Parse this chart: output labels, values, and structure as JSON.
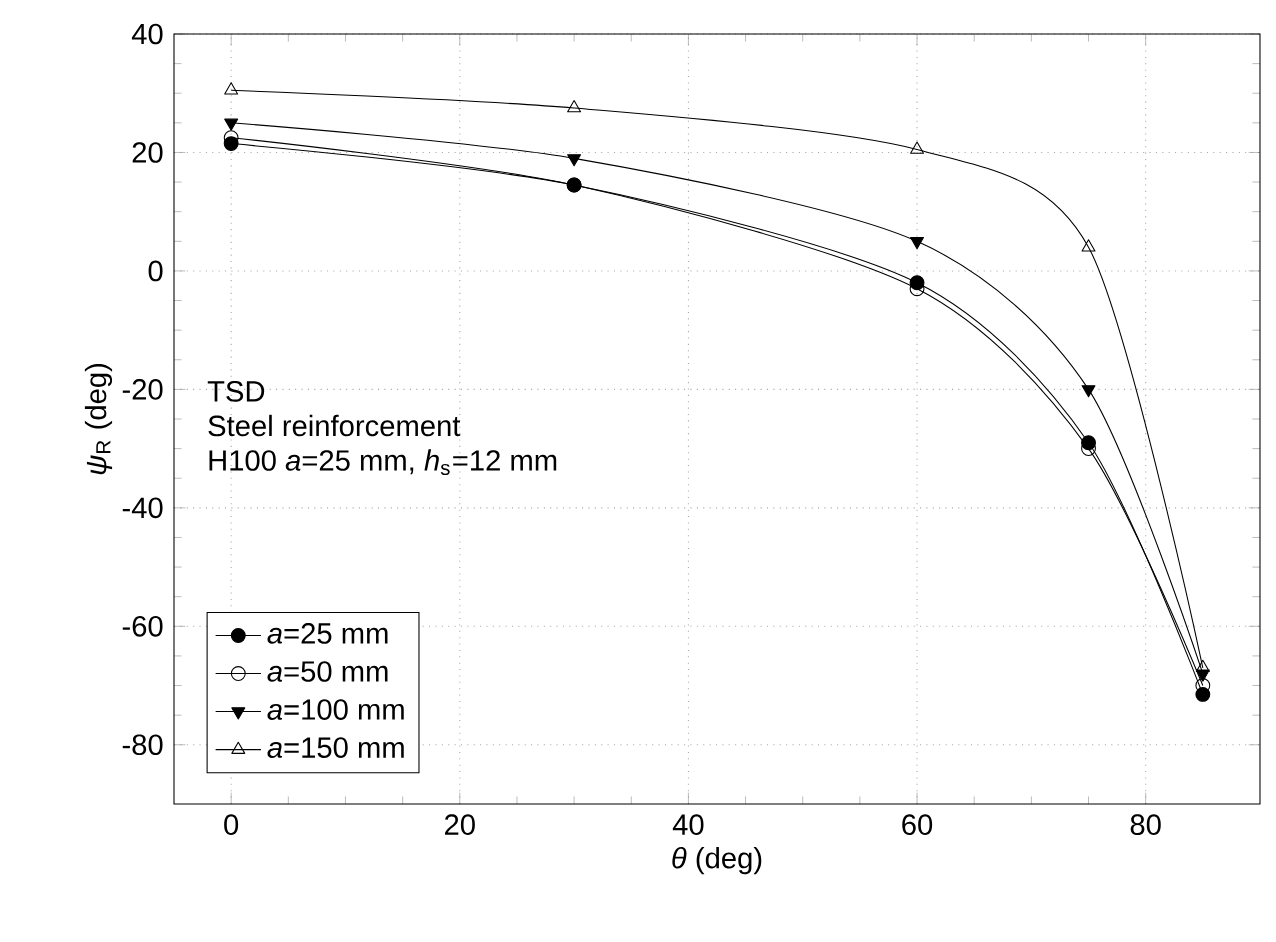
{
  "chart_data": {
    "type": "line",
    "xlabel": "*θ* (deg)",
    "ylabel": "*ψ*$_{R}$ (deg)",
    "annotations": [
      "TSD",
      "Steel reinforcement",
      "H100 *a*=25 mm, *h*$_{s}$=12 mm"
    ],
    "x": [
      0,
      30,
      60,
      75,
      85
    ],
    "series": [
      {
        "name": "*a*=25 mm",
        "color": "#000000",
        "marker": "circle",
        "values": [
          21.5,
          14.5,
          -2,
          -29,
          -71.5
        ]
      },
      {
        "name": "*a*=50 mm",
        "color": "#000000",
        "marker": "circle open",
        "values": [
          22.5,
          14.5,
          -3,
          -30,
          -70
        ]
      },
      {
        "name": "*a*=100 mm",
        "color": "#000000",
        "marker": "triangle down",
        "values": [
          25,
          19,
          5,
          -20,
          -68
        ]
      },
      {
        "name": "*a*=150 mm",
        "color": "#000000",
        "marker": "triangle open",
        "values": [
          30.5,
          27.5,
          20.5,
          4,
          -67
        ]
      }
    ],
    "xlim": [
      -5,
      90
    ],
    "ylim": [
      -90,
      40
    ],
    "xticks": [
      0,
      20,
      40,
      60,
      80
    ],
    "yticks": [
      -80,
      -60,
      -40,
      -20,
      0,
      20,
      40
    ],
    "grid": true,
    "legend": "bottom left",
    "line_style": "solid"
  }
}
